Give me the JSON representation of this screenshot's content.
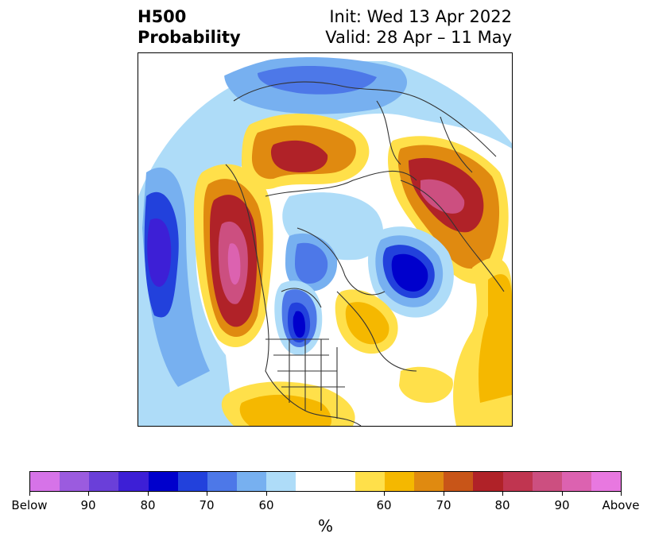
{
  "title": {
    "left_line1": "H500",
    "left_line2": "Probability",
    "right_line1": "Init: Wed 13 Apr 2022",
    "right_line2": "Valid: 28 Apr – 11 May"
  },
  "map": {
    "projection": "polar stereographic (north pole)",
    "features": [
      "coastlines",
      "country borders",
      "US state borders",
      "Canadian province borders"
    ]
  },
  "colorbar": {
    "colors": [
      "#d673e8",
      "#9b5bdf",
      "#6a3fd9",
      "#3d1fd6",
      "#0000cc",
      "#2241dc",
      "#4d78e8",
      "#77b0f0",
      "#aedcf8",
      "#ffffff",
      "#ffffff",
      "#ffe04a",
      "#f5b800",
      "#e08a10",
      "#c85518",
      "#b02228",
      "#c03550",
      "#cc4f80",
      "#dc62b0",
      "#e878e0"
    ],
    "tick_labels": [
      "Below",
      "90",
      "80",
      "70",
      "60",
      "60",
      "70",
      "80",
      "90",
      "Above"
    ],
    "unit": "%"
  }
}
